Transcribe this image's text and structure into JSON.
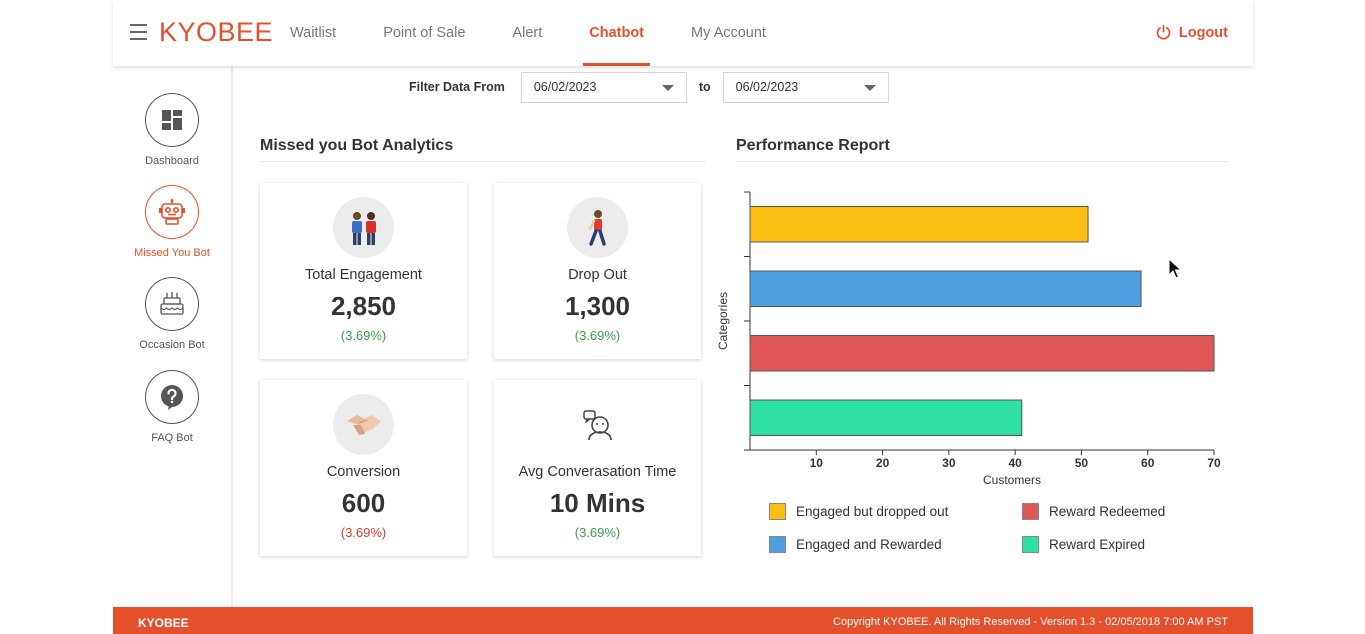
{
  "header": {
    "logo": "KYOBEE",
    "nav": [
      {
        "label": "Waitlist",
        "active": false
      },
      {
        "label": "Point of Sale",
        "active": false
      },
      {
        "label": "Alert",
        "active": false
      },
      {
        "label": "Chatbot",
        "active": true
      },
      {
        "label": "My Account",
        "active": false
      }
    ],
    "logout_label": "Logout",
    "accent_color": "#e4502b"
  },
  "sidebar": {
    "items": [
      {
        "label": "Dashboard",
        "icon": "dashboard-icon",
        "active": false
      },
      {
        "label": "Missed You Bot",
        "icon": "robot-icon",
        "active": true
      },
      {
        "label": "Occasion Bot",
        "icon": "cake-icon",
        "active": false
      },
      {
        "label": "FAQ Bot",
        "icon": "question-icon",
        "active": false
      }
    ]
  },
  "filter": {
    "label": "Filter Data From",
    "from": "06/02/2023",
    "to_label": "to",
    "to": "06/02/2023"
  },
  "analytics": {
    "title": "Missed you Bot Analytics",
    "cards": [
      {
        "label": "Total Engagement",
        "value": "2,850",
        "pct": "(3.69%)",
        "pct_color": "green",
        "icon": "people-icon"
      },
      {
        "label": "Drop Out",
        "value": "1,300",
        "pct": "(3.69%)",
        "pct_color": "green",
        "icon": "walking-person-icon"
      },
      {
        "label": "Conversion",
        "value": "600",
        "pct": "(3.69%)",
        "pct_color": "red",
        "icon": "handshake-icon"
      },
      {
        "label": "Avg Converasation Time",
        "value": "10 Mins",
        "pct": "(3.69%)",
        "pct_color": "green",
        "icon": "chat-person-icon"
      }
    ]
  },
  "performance": {
    "title": "Performance Report"
  },
  "chart_data": {
    "type": "bar",
    "orientation": "horizontal",
    "ylabel": "Categories",
    "xlabel": "Customers",
    "xlim": [
      0,
      70
    ],
    "xticks": [
      10,
      20,
      30,
      40,
      50,
      60,
      70
    ],
    "series": [
      {
        "name": "Engaged but dropped out",
        "value": 51,
        "color": "#fbbf14"
      },
      {
        "name": "Engaged and Rewarded",
        "value": 59,
        "color": "#4f9fe1"
      },
      {
        "name": "Reward Redeemed",
        "value": 70,
        "color": "#e05555"
      },
      {
        "name": "Reward Expired",
        "value": 41,
        "color": "#2ee0a2"
      }
    ],
    "legend_position": "bottom"
  },
  "footer": {
    "brand": "KYOBEE",
    "copyright": "Copyright KYOBEE. All Rights Reserved - Version 1.3 - 02/05/2018 7:00 AM PST"
  }
}
